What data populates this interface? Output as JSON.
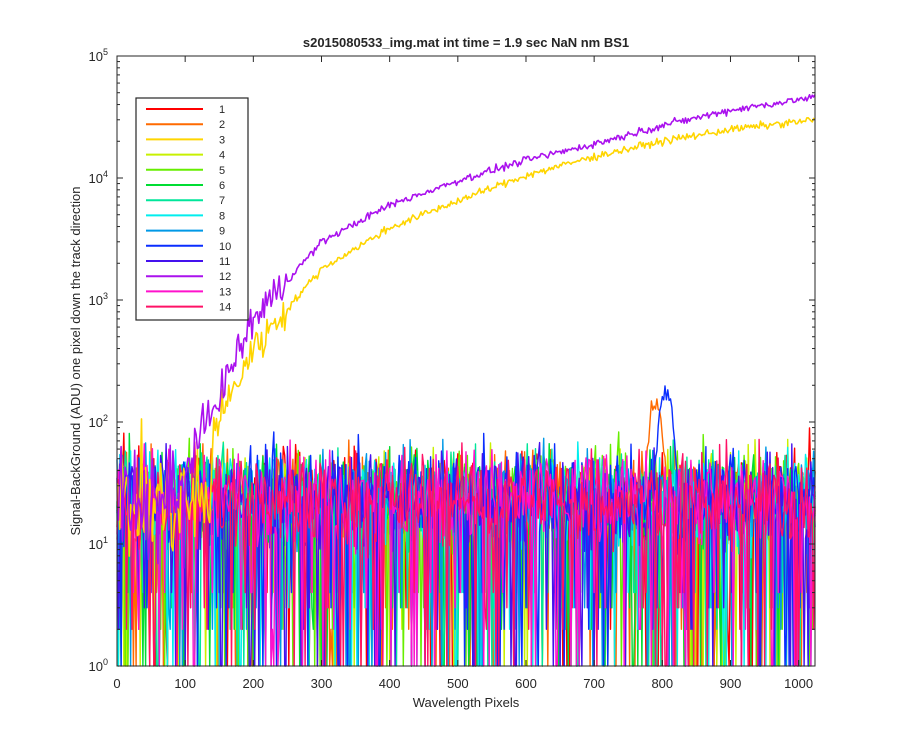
{
  "chart_data": {
    "type": "line",
    "title": "s2015080533_img.mat int time = 1.9 sec  NaN nm BS1",
    "xlabel": "Wavelength Pixels",
    "ylabel": "Signal-BackGround (ADU) one pixel down the track direction",
    "xlim": [
      0,
      1024
    ],
    "ylim": [
      1,
      100000
    ],
    "yscale": "log",
    "grid": false,
    "legend_position": "top-left",
    "x_ticks": [
      0,
      100,
      200,
      300,
      400,
      500,
      600,
      700,
      800,
      900,
      1000
    ],
    "x_tick_labels": [
      "0",
      "100",
      "200",
      "300",
      "400",
      "500",
      "600",
      "700",
      "800",
      "900",
      "1000"
    ],
    "y_ticks": [
      1,
      10,
      100,
      1000,
      10000,
      100000
    ],
    "y_tick_labels": [
      {
        "base": "10",
        "exp": "0"
      },
      {
        "base": "10",
        "exp": "1"
      },
      {
        "base": "10",
        "exp": "2"
      },
      {
        "base": "10",
        "exp": "3"
      },
      {
        "base": "10",
        "exp": "4"
      },
      {
        "base": "10",
        "exp": "5"
      }
    ],
    "series": [
      {
        "name": "1",
        "color": "#ff0000",
        "kind": "noise"
      },
      {
        "name": "2",
        "color": "#ff6a00",
        "kind": "noise",
        "peak": {
          "x": 790,
          "y": 150
        }
      },
      {
        "name": "3",
        "color": "#ffd500",
        "kind": "rising",
        "points": [
          [
            140,
            80
          ],
          [
            200,
            400
          ],
          [
            300,
            1800
          ],
          [
            400,
            3900
          ],
          [
            500,
            6500
          ],
          [
            600,
            10500
          ],
          [
            700,
            15000
          ],
          [
            800,
            20000
          ],
          [
            900,
            25000
          ],
          [
            1024,
            30000
          ]
        ]
      },
      {
        "name": "4",
        "color": "#c8f000",
        "kind": "noise"
      },
      {
        "name": "5",
        "color": "#66ee00",
        "kind": "noise"
      },
      {
        "name": "6",
        "color": "#00dd33",
        "kind": "noise"
      },
      {
        "name": "7",
        "color": "#00e69a",
        "kind": "noise"
      },
      {
        "name": "8",
        "color": "#00eeee",
        "kind": "noise"
      },
      {
        "name": "9",
        "color": "#0099e6",
        "kind": "noise"
      },
      {
        "name": "10",
        "color": "#0a2eff",
        "kind": "noise",
        "peak": {
          "x": 805,
          "y": 200
        }
      },
      {
        "name": "11",
        "color": "#4411ee",
        "kind": "noise"
      },
      {
        "name": "12",
        "color": "#aa11ee",
        "kind": "rising",
        "points": [
          [
            100,
            40
          ],
          [
            200,
            700
          ],
          [
            300,
            3000
          ],
          [
            400,
            6000
          ],
          [
            500,
            9500
          ],
          [
            600,
            14000
          ],
          [
            700,
            19000
          ],
          [
            800,
            27000
          ],
          [
            900,
            36000
          ],
          [
            1024,
            46000
          ]
        ]
      },
      {
        "name": "13",
        "color": "#ff11cc",
        "kind": "noise"
      },
      {
        "name": "14",
        "color": "#ff1166",
        "kind": "noise"
      }
    ]
  }
}
